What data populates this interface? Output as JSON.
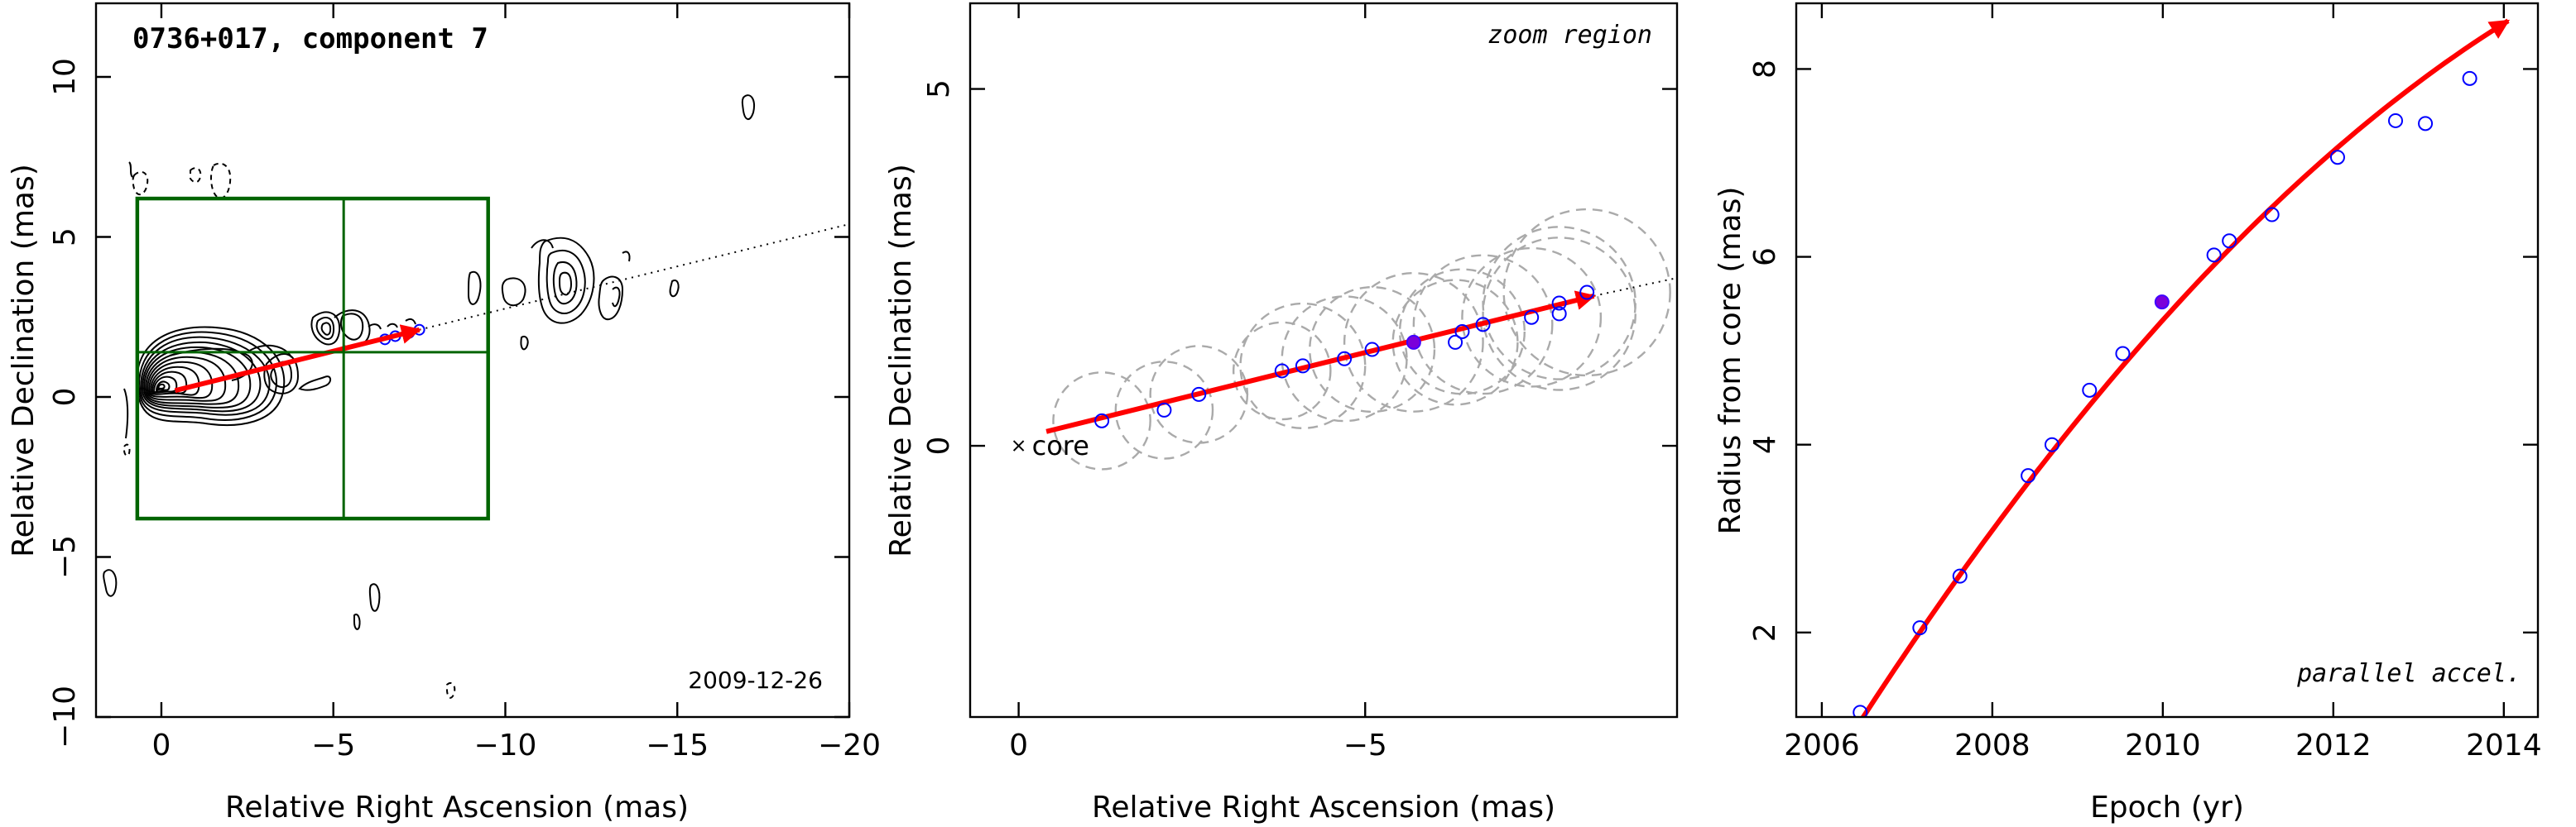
{
  "chart_data": [
    {
      "type": "contour",
      "title": "0736+017, component 7",
      "date_label": "2009-12-26",
      "xlabel": "Relative Right Ascension (mas)",
      "ylabel": "Relative Declination (mas)",
      "xlim": [
        1.9,
        -20.0
      ],
      "ylim": [
        -10.0,
        12.3
      ],
      "xticks": [
        0,
        -5,
        -10,
        -15,
        -20
      ],
      "yticks": [
        -10,
        -5,
        0,
        5,
        10
      ],
      "zoom_box": {
        "x": [
          0.7,
          -9.5
        ],
        "y": [
          -3.8,
          6.2
        ]
      },
      "crosshair": {
        "x": -5.3,
        "y": 1.4
      },
      "trajectory": {
        "from": [
          -0.4,
          0.2
        ],
        "to": [
          -7.5,
          2.1
        ]
      },
      "track_line": {
        "from": [
          -7.5,
          2.1
        ],
        "to": [
          -20.0,
          5.4
        ]
      },
      "positions": [
        [
          -6.8,
          1.9
        ],
        [
          -7.2,
          2.0
        ],
        [
          -7.5,
          2.1
        ],
        [
          -6.5,
          1.8
        ]
      ]
    },
    {
      "type": "scatter",
      "annotation": "zoom region",
      "core_label": "core",
      "xlabel": "Relative Right Ascension (mas)",
      "ylabel": "Relative Declination (mas)",
      "xlim": [
        0.7,
        -9.5
      ],
      "ylim": [
        -3.8,
        6.2
      ],
      "xticks": [
        0,
        -5
      ],
      "yticks": [
        0,
        5
      ],
      "core": [
        0,
        0
      ],
      "trajectory": {
        "from": [
          -0.4,
          0.2
        ],
        "to": [
          -8.3,
          2.1
        ]
      },
      "track_line": {
        "from": [
          -8.3,
          2.1
        ],
        "to": [
          -10.2,
          2.5
        ]
      },
      "positions": [
        {
          "x": -1.2,
          "y": 0.35,
          "beam": 0.7
        },
        {
          "x": -2.1,
          "y": 0.5,
          "beam": 0.7
        },
        {
          "x": -2.6,
          "y": 0.72,
          "beam": 0.7
        },
        {
          "x": -3.8,
          "y": 1.05,
          "beam": 0.7
        },
        {
          "x": -4.1,
          "y": 1.12,
          "beam": 0.9
        },
        {
          "x": -4.7,
          "y": 1.22,
          "beam": 0.9
        },
        {
          "x": -5.1,
          "y": 1.35,
          "beam": 0.9
        },
        {
          "x": -5.7,
          "y": 1.45,
          "beam": 1.0,
          "highlight": true
        },
        {
          "x": -6.3,
          "y": 1.45,
          "beam": 0.9
        },
        {
          "x": -6.4,
          "y": 1.6,
          "beam": 0.9
        },
        {
          "x": -6.7,
          "y": 1.7,
          "beam": 1.0
        },
        {
          "x": -7.4,
          "y": 1.8,
          "beam": 1.0
        },
        {
          "x": -7.8,
          "y": 1.85,
          "beam": 1.1
        },
        {
          "x": -7.8,
          "y": 2.0,
          "beam": 1.1
        },
        {
          "x": -8.2,
          "y": 2.15,
          "beam": 1.2
        }
      ]
    },
    {
      "type": "line",
      "annotation": "parallel accel.",
      "xlabel": "Epoch (yr)",
      "ylabel": "Radius from core (mas)",
      "xlim": [
        2005.7,
        2014.4
      ],
      "ylim": [
        1.1,
        8.7
      ],
      "xticks": [
        2006,
        2008,
        2010,
        2012,
        2014
      ],
      "yticks": [
        2,
        4,
        6,
        8
      ],
      "points": [
        {
          "x": 2006.45,
          "y": 1.15
        },
        {
          "x": 2007.15,
          "y": 2.05
        },
        {
          "x": 2007.62,
          "y": 2.6
        },
        {
          "x": 2008.42,
          "y": 3.67
        },
        {
          "x": 2008.7,
          "y": 4.0
        },
        {
          "x": 2009.14,
          "y": 4.58
        },
        {
          "x": 2009.53,
          "y": 4.97
        },
        {
          "x": 2009.99,
          "y": 5.52,
          "highlight": true
        },
        {
          "x": 2010.6,
          "y": 6.02
        },
        {
          "x": 2010.78,
          "y": 6.17
        },
        {
          "x": 2011.28,
          "y": 6.45
        },
        {
          "x": 2012.05,
          "y": 7.06
        },
        {
          "x": 2012.73,
          "y": 7.45
        },
        {
          "x": 2013.08,
          "y": 7.42
        },
        {
          "x": 2013.6,
          "y": 7.9
        }
      ],
      "fit": {
        "type": "quadratic",
        "t0": 2006.45,
        "r0": 1.05,
        "v": 1.4,
        "a": -0.055,
        "t_end": 2014.05
      }
    }
  ]
}
